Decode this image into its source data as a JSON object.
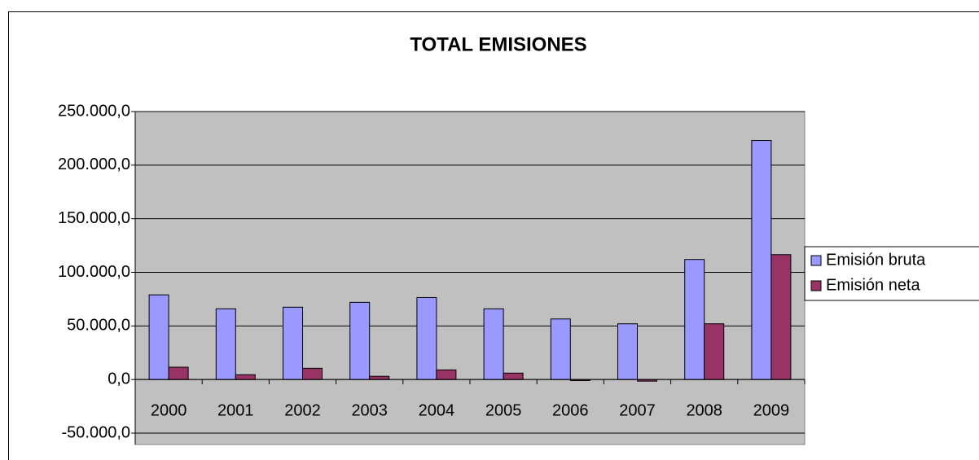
{
  "chart_data": {
    "type": "bar",
    "title": "TOTAL EMISIONES",
    "categories": [
      "2000",
      "2001",
      "2002",
      "2003",
      "2004",
      "2005",
      "2006",
      "2007",
      "2008",
      "2009"
    ],
    "series": [
      {
        "name": "Emisión bruta",
        "color": "#9999ff",
        "values": [
          79000,
          66000,
          67500,
          72000,
          76500,
          66000,
          56500,
          52000,
          112000,
          223000
        ]
      },
      {
        "name": "Emisión neta",
        "color": "#993366",
        "values": [
          11500,
          4500,
          10500,
          3000,
          9000,
          6000,
          -1000,
          -1500,
          52000,
          116500
        ]
      }
    ],
    "ylim": [
      -50000,
      250000
    ],
    "yticks": [
      {
        "value": -50000,
        "label": "-50.000,0"
      },
      {
        "value": 0,
        "label": "0,0"
      },
      {
        "value": 50000,
        "label": "50.000,0"
      },
      {
        "value": 100000,
        "label": "100.000,0"
      },
      {
        "value": 150000,
        "label": "150.000,0"
      },
      {
        "value": 200000,
        "label": "200.000,0"
      },
      {
        "value": 250000,
        "label": "250.000,0"
      }
    ],
    "grid": true,
    "legend": "right"
  }
}
